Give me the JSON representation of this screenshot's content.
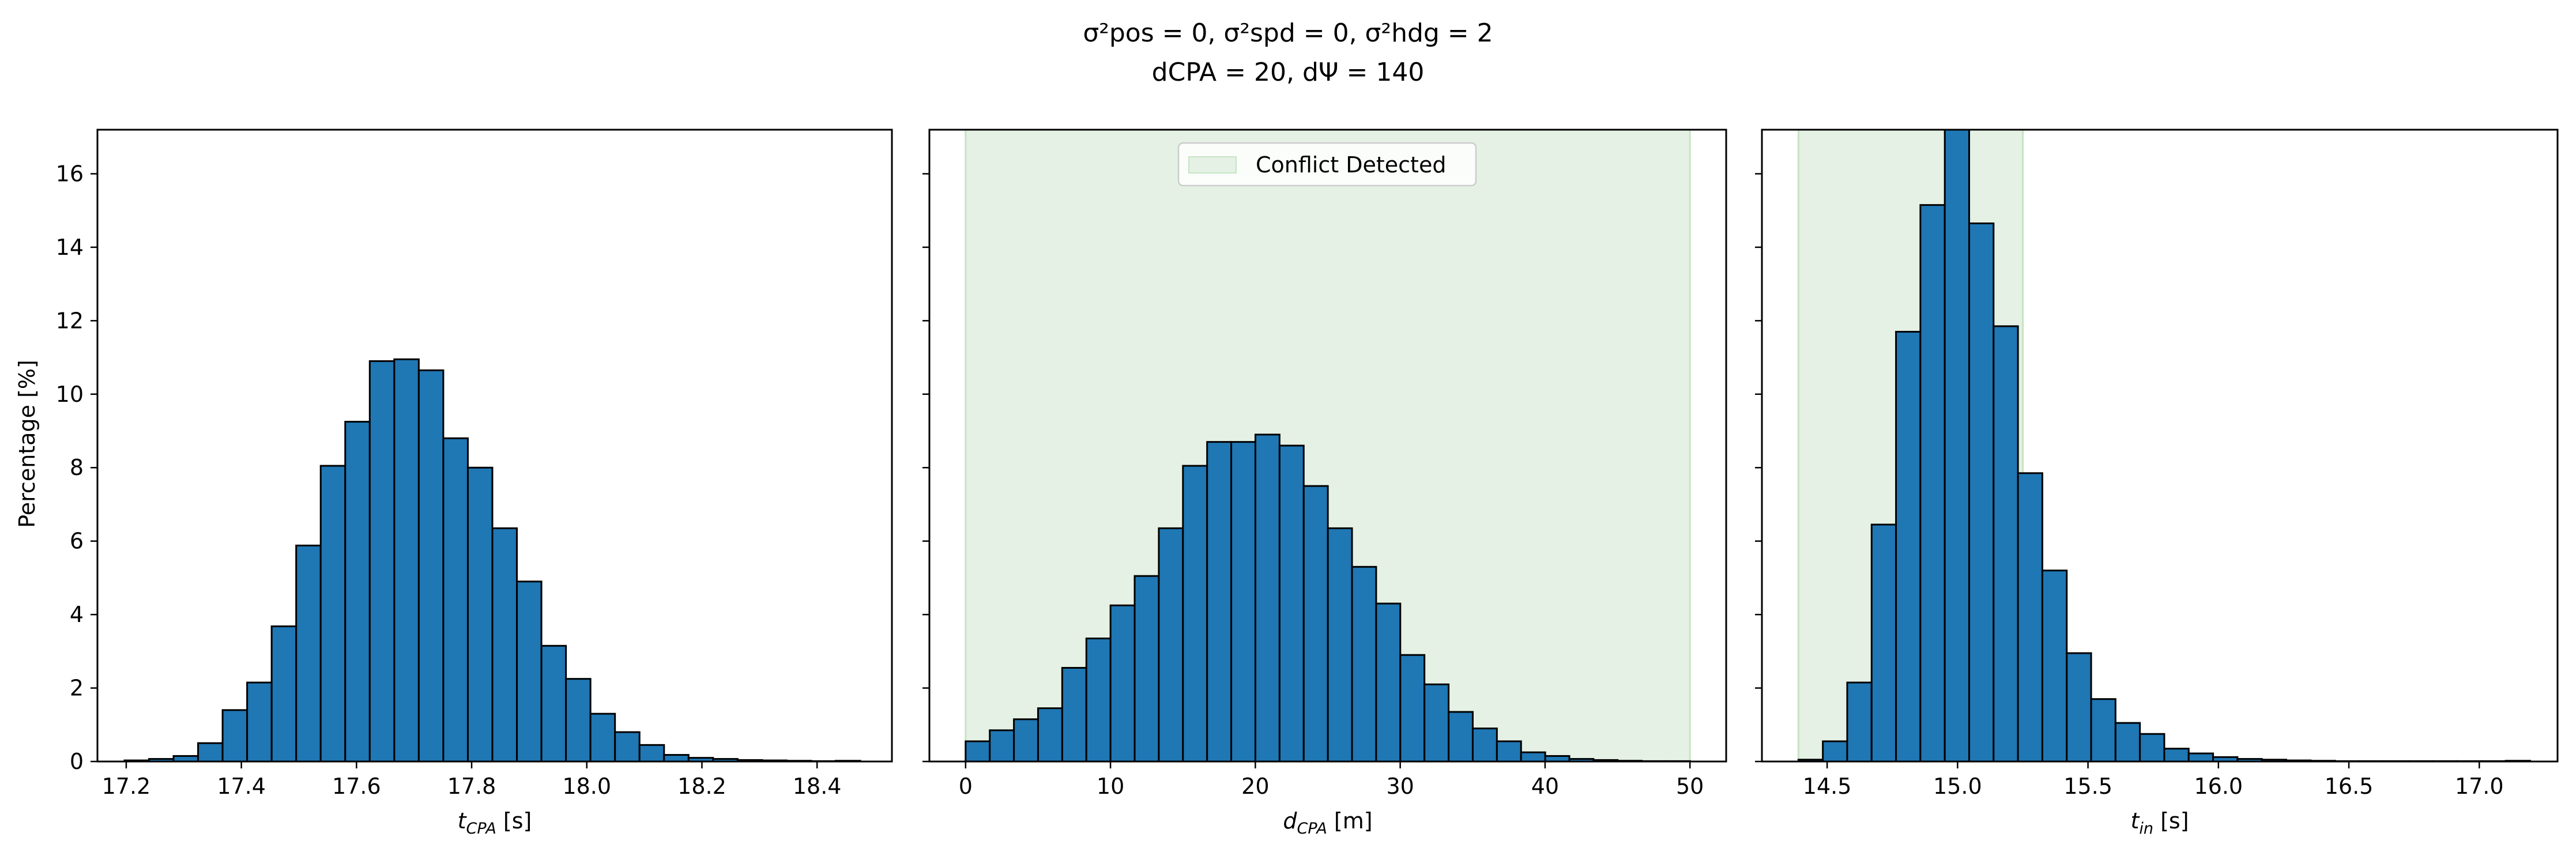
{
  "figure": {
    "title_line1": "σ²pos = 0, σ²spd = 0, σ²hdg = 2",
    "title_line2": "dCPA = 20, dΨ = 140",
    "ylabel": "Percentage [%]",
    "colors": {
      "bar_fill": "#1f77b4",
      "bar_edge": "#000000",
      "region_fill": "#e5f1e4",
      "region_edge": "#c7e3c5"
    }
  },
  "chart_data": [
    {
      "type": "bar",
      "xlabel_main": "t",
      "xlabel_sub": "CPA",
      "xlabel_unit": " [s]",
      "xlim": [
        17.15,
        18.53
      ],
      "ylim": [
        0,
        17.2
      ],
      "xticks": [
        "17.2",
        "17.4",
        "17.6",
        "17.8",
        "18.0",
        "18.2",
        "18.4"
      ],
      "xtick_values": [
        17.2,
        17.4,
        17.6,
        17.8,
        18.0,
        18.2,
        18.4
      ],
      "yticks": [
        "0",
        "2",
        "4",
        "6",
        "8",
        "10",
        "12",
        "14",
        "16"
      ],
      "ytick_values": [
        0,
        2,
        4,
        6,
        8,
        10,
        12,
        14,
        16
      ],
      "show_ytick_labels": true,
      "bin_start": 17.197,
      "bin_width": 0.0426,
      "values": [
        0.03,
        0.07,
        0.15,
        0.5,
        1.4,
        2.15,
        3.68,
        5.88,
        8.05,
        9.25,
        10.9,
        10.95,
        10.65,
        8.8,
        8.0,
        6.35,
        4.9,
        3.15,
        2.25,
        1.3,
        0.8,
        0.45,
        0.18,
        0.1,
        0.07,
        0.04,
        0.03,
        0.02,
        0.01,
        0.02
      ],
      "region": null,
      "legend": null
    },
    {
      "type": "bar",
      "xlabel_main": "d",
      "xlabel_sub": "CPA",
      "xlabel_unit": " [m]",
      "xlim": [
        -2.5,
        52.5
      ],
      "ylim": [
        0,
        17.2
      ],
      "xticks": [
        "0",
        "10",
        "20",
        "30",
        "40",
        "50"
      ],
      "xtick_values": [
        0,
        10,
        20,
        30,
        40,
        50
      ],
      "yticks": [
        "0",
        "2",
        "4",
        "6",
        "8",
        "10",
        "12",
        "14",
        "16"
      ],
      "ytick_values": [
        0,
        2,
        4,
        6,
        8,
        10,
        12,
        14,
        16
      ],
      "show_ytick_labels": false,
      "bin_start": 0,
      "bin_width": 1.667,
      "values": [
        0.55,
        0.85,
        1.15,
        1.45,
        2.55,
        3.35,
        4.25,
        5.05,
        6.35,
        8.05,
        8.7,
        8.7,
        8.9,
        8.6,
        7.5,
        6.35,
        5.3,
        4.3,
        2.9,
        2.1,
        1.35,
        0.9,
        0.55,
        0.25,
        0.15,
        0.07,
        0.04,
        0.02,
        0.01,
        0.01
      ],
      "region": [
        0,
        50
      ],
      "legend": "Conflict Detected"
    },
    {
      "type": "bar",
      "xlabel_main": "t",
      "xlabel_sub": "in",
      "xlabel_unit": " [s]",
      "xlim": [
        14.25,
        17.3
      ],
      "ylim": [
        0,
        17.2
      ],
      "xticks": [
        "14.5",
        "15.0",
        "15.5",
        "16.0",
        "16.5",
        "17.0"
      ],
      "xtick_values": [
        14.5,
        15.0,
        15.5,
        16.0,
        16.5,
        17.0
      ],
      "yticks": [
        "0",
        "2",
        "4",
        "6",
        "8",
        "10",
        "12",
        "14",
        "16"
      ],
      "ytick_values": [
        0,
        2,
        4,
        6,
        8,
        10,
        12,
        14,
        16
      ],
      "show_ytick_labels": false,
      "bin_start": 14.39,
      "bin_width": 0.0935,
      "values": [
        0.05,
        0.55,
        2.15,
        6.45,
        11.7,
        15.15,
        17.2,
        14.65,
        11.85,
        7.85,
        5.2,
        2.95,
        1.7,
        1.05,
        0.75,
        0.35,
        0.22,
        0.12,
        0.07,
        0.05,
        0.03,
        0.02,
        0.01,
        0.01,
        0.01,
        0.01,
        0.01,
        0.01,
        0.01,
        0.02
      ],
      "region": [
        14.39,
        15.25
      ],
      "legend": null
    }
  ]
}
